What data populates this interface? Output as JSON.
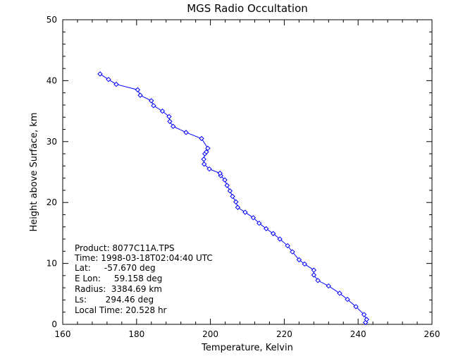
{
  "chart_data": {
    "type": "line",
    "title": "MGS Radio Occultation",
    "xlabel": "Temperature, Kelvin",
    "ylabel": "Height above Surface, km",
    "xlim": [
      160,
      260
    ],
    "ylim": [
      0,
      50
    ],
    "xticks": [
      160,
      180,
      200,
      220,
      240,
      260
    ],
    "yticks": [
      0,
      10,
      20,
      30,
      40,
      50
    ],
    "grid": false,
    "line_color": "#0000ff",
    "marker": "diamond",
    "series": [
      {
        "x": [
          242.0,
          242.3,
          241.6,
          239.4,
          237.1,
          235.0,
          232.0,
          229.1,
          228.0,
          228.0,
          225.5,
          224.0,
          222.2,
          220.9,
          218.8,
          217.0,
          215.1,
          213.2,
          211.6,
          209.4,
          207.4,
          206.9,
          206.0,
          205.3,
          204.5,
          203.9,
          202.8,
          202.6,
          199.7,
          198.3,
          198.2,
          198.5,
          198.9,
          199.3,
          197.6,
          193.4,
          189.9,
          189.0,
          188.8,
          187.0,
          184.6,
          184.0,
          181.0,
          180.3,
          174.5,
          172.4,
          170.1
        ],
        "y": [
          0.3,
          0.8,
          1.6,
          2.9,
          4.1,
          5.1,
          6.3,
          7.2,
          8.1,
          8.9,
          9.9,
          10.6,
          11.9,
          12.9,
          14.0,
          14.9,
          15.7,
          16.6,
          17.5,
          18.4,
          19.2,
          20.1,
          21.0,
          21.9,
          22.8,
          23.7,
          24.4,
          24.8,
          25.5,
          26.3,
          27.1,
          28.0,
          28.3,
          28.9,
          30.5,
          31.5,
          32.5,
          33.3,
          34.1,
          35.0,
          35.9,
          36.7,
          37.6,
          38.5,
          39.4,
          40.2,
          41.1
        ]
      }
    ]
  },
  "annotation": {
    "product": "Product: 8077C11A.TPS",
    "time": "Time: 1998-03-18T02:04:40 UTC",
    "lat": "Lat:     -57.670 deg",
    "elon": "E Lon:     59.158 deg",
    "radius": "Radius:  3384.69 km",
    "ls": "Ls:       294.46 deg",
    "local_time": "Local Time: 20.528 hr"
  }
}
